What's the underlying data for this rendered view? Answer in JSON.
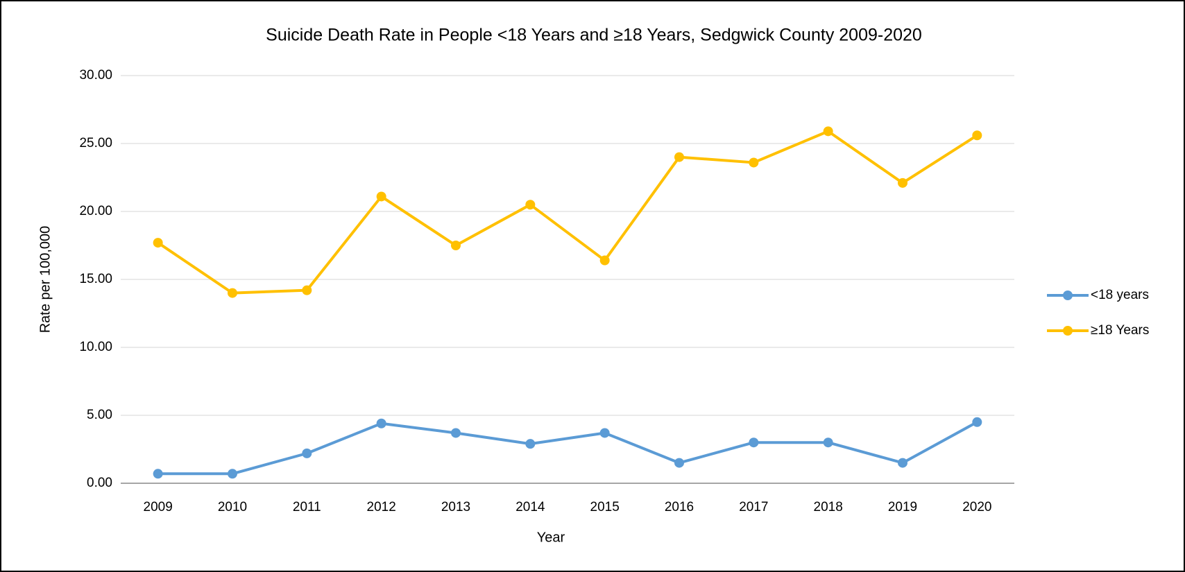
{
  "chart_data": {
    "type": "line",
    "title": "Suicide Death Rate in People <18 Years and ≥18 Years, Sedgwick County 2009-2020",
    "x_label": "Year",
    "y_label": "Rate per 100,000",
    "categories": [
      "2009",
      "2010",
      "2011",
      "2012",
      "2013",
      "2014",
      "2015",
      "2016",
      "2017",
      "2018",
      "2019",
      "2020"
    ],
    "series": [
      {
        "name": "<18 years",
        "color": "#5b9bd5",
        "values": [
          0.7,
          0.7,
          2.2,
          4.4,
          3.7,
          2.9,
          3.7,
          1.5,
          3.0,
          3.0,
          1.5,
          4.5
        ]
      },
      {
        "name": "≥18 Years",
        "color": "#ffc000",
        "values": [
          17.7,
          14.0,
          14.2,
          21.1,
          17.5,
          20.5,
          16.4,
          24.0,
          23.6,
          25.9,
          22.1,
          25.6
        ]
      }
    ],
    "ylim": [
      0,
      30
    ],
    "yticks": [
      {
        "value": 0,
        "label": "0.00"
      },
      {
        "value": 5,
        "label": "5.00"
      },
      {
        "value": 10,
        "label": "10.00"
      },
      {
        "value": 15,
        "label": "15.00"
      },
      {
        "value": 20,
        "label": "20.00"
      },
      {
        "value": 25,
        "label": "25.00"
      },
      {
        "value": 30,
        "label": "30.00"
      }
    ],
    "grid": true,
    "legend": "right"
  }
}
